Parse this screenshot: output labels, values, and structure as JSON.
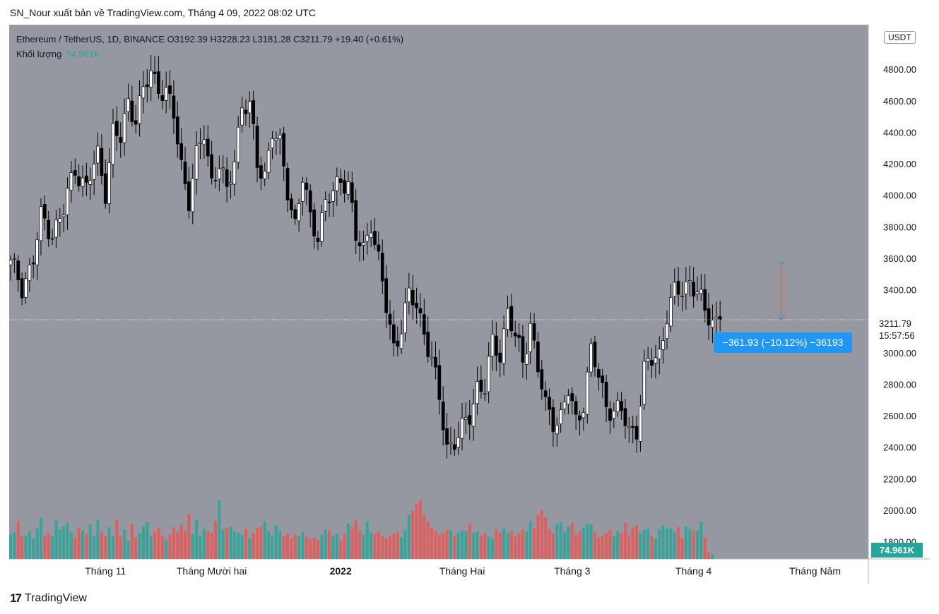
{
  "header": {
    "publish_line": "SN_Nour xuất bản về TradingView.com, Tháng 4 09, 2022 08:02 UTC"
  },
  "legend": {
    "symbol_line": "Ethereum / TetherUS, 1D, BINANCE  O3192.39  H3228.23  L3181.28  C3211.79  +19.40 (+0.61%)",
    "volume_label": "Khối lượng",
    "volume_value": "74.961K"
  },
  "price_scale": {
    "currency": "USDT",
    "last_price": "3211.79",
    "countdown": "15:57:56",
    "volume_tag": "74.961K"
  },
  "measure": {
    "label": "−361.93 (−10.12%) −36193"
  },
  "footer": {
    "brand": "TradingView",
    "logo_glyph": "17"
  },
  "colors": {
    "background": "#9598a1",
    "up": "#ffffff",
    "down": "#000000",
    "vol_up": "#26a69a",
    "vol_down": "#ef5350",
    "measure": "#2196f3"
  },
  "chart_data": {
    "type": "candlestick",
    "y_ticks": [
      "4800.00",
      "4600.00",
      "4400.00",
      "4200.00",
      "4000.00",
      "3800.00",
      "3600.00",
      "3400.00",
      "3000.00",
      "2800.00",
      "2600.00",
      "2400.00",
      "2200.00",
      "2000.00",
      "1800.00"
    ],
    "x_ticks": [
      {
        "label": "Tháng 11",
        "bold": false
      },
      {
        "label": "Tháng Mười hai",
        "bold": false
      },
      {
        "label": "2022",
        "bold": true
      },
      {
        "label": "Tháng Hai",
        "bold": false
      },
      {
        "label": "Tháng 3",
        "bold": false
      },
      {
        "label": "Tháng 4",
        "bold": false
      },
      {
        "label": "Tháng Năm",
        "bold": false
      }
    ],
    "close_anchors": [
      [
        0,
        3560
      ],
      [
        3,
        3420
      ],
      [
        6,
        3600
      ],
      [
        8,
        3850
      ],
      [
        11,
        3770
      ],
      [
        14,
        3900
      ],
      [
        17,
        4180
      ],
      [
        20,
        4050
      ],
      [
        23,
        4250
      ],
      [
        25,
        4040
      ],
      [
        27,
        4400
      ],
      [
        29,
        4350
      ],
      [
        31,
        4600
      ],
      [
        33,
        4500
      ],
      [
        35,
        4650
      ],
      [
        37,
        4780
      ],
      [
        39,
        4700
      ],
      [
        41,
        4650
      ],
      [
        43,
        4500
      ],
      [
        45,
        4200
      ],
      [
        47,
        3980
      ],
      [
        49,
        4230
      ],
      [
        51,
        4400
      ],
      [
        53,
        4100
      ],
      [
        55,
        4200
      ],
      [
        57,
        4000
      ],
      [
        59,
        4250
      ],
      [
        61,
        4580
      ],
      [
        63,
        4550
      ],
      [
        65,
        4200
      ],
      [
        67,
        4150
      ],
      [
        69,
        4400
      ],
      [
        71,
        4300
      ],
      [
        73,
        4050
      ],
      [
        75,
        3820
      ],
      [
        77,
        4100
      ],
      [
        79,
        3850
      ],
      [
        81,
        3770
      ],
      [
        83,
        3950
      ],
      [
        85,
        4000
      ],
      [
        87,
        4120
      ],
      [
        89,
        4080
      ],
      [
        91,
        3720
      ],
      [
        93,
        3650
      ],
      [
        95,
        3850
      ],
      [
        97,
        3580
      ],
      [
        99,
        3280
      ],
      [
        101,
        3040
      ],
      [
        103,
        3180
      ],
      [
        105,
        3350
      ],
      [
        107,
        3300
      ],
      [
        109,
        3150
      ],
      [
        111,
        2950
      ],
      [
        113,
        2700
      ],
      [
        115,
        2410
      ],
      [
        117,
        2450
      ],
      [
        119,
        2500
      ],
      [
        121,
        2600
      ],
      [
        123,
        2800
      ],
      [
        125,
        2780
      ],
      [
        127,
        3050
      ],
      [
        129,
        3000
      ],
      [
        131,
        3280
      ],
      [
        133,
        3080
      ],
      [
        135,
        2950
      ],
      [
        137,
        3200
      ],
      [
        139,
        2900
      ],
      [
        141,
        2650
      ],
      [
        143,
        2580
      ],
      [
        145,
        2600
      ],
      [
        147,
        2750
      ],
      [
        149,
        2560
      ],
      [
        151,
        2700
      ],
      [
        153,
        3010
      ],
      [
        155,
        2840
      ],
      [
        157,
        2680
      ],
      [
        159,
        2640
      ],
      [
        161,
        2620
      ],
      [
        163,
        2500
      ],
      [
        165,
        2530
      ],
      [
        167,
        2880
      ],
      [
        169,
        2950
      ],
      [
        171,
        3000
      ],
      [
        173,
        3250
      ],
      [
        175,
        3370
      ],
      [
        177,
        3400
      ],
      [
        179,
        3470
      ],
      [
        181,
        3380
      ],
      [
        183,
        3250
      ],
      [
        185,
        3220
      ],
      [
        186,
        3211.79
      ]
    ],
    "volume": [
      2020,
      2050,
      2180,
      2000,
      2010,
      2060,
      1980,
      2090,
      2220,
      2010,
      2040,
      2000,
      2190,
      2080,
      2120,
      2160,
      2050,
      1990,
      2100,
      2070,
      2030,
      2140,
      2010,
      2190,
      2060,
      2000,
      2110,
      2010,
      2200,
      2010,
      2080,
      1950,
      2150,
      1990,
      2040,
      2120,
      2170,
      2010,
      2060,
      2100,
      2010,
      1960,
      2020,
      2110,
      2050,
      2140,
      2060,
      2260,
      2030,
      2190,
      2010,
      2090,
      2060,
      2040,
      2180,
      2420,
      2080,
      2100,
      2120,
      2060,
      2040,
      2020,
      2090,
      1980,
      2040,
      2100,
      2120,
      2180,
      2060,
      2010,
      2130,
      2060,
      2010,
      2040,
      1980,
      2020,
      2000,
      2050,
      2000,
      1970,
      1990,
      1960,
      2020,
      2080,
      2070,
      2010,
      2030,
      1950,
      2040,
      2150,
      2110,
      2190,
      2060,
      2020,
      2180,
      2050,
      2030,
      2060,
      2000,
      1980,
      2010,
      2040,
      2050,
      1990,
      2080,
      2250,
      2300,
      2380,
      2420,
      2250,
      2180,
      2100,
      2060,
      2020,
      2040,
      2080,
      2070,
      2010,
      2040,
      2070,
      2060,
      2150,
      2040,
      2060,
      2010,
      2040,
      2000,
      1980,
      2080,
      2050,
      2100,
      2040,
      2060,
      2000,
      2040,
      2080,
      2060,
      2180,
      2100,
      2250,
      2310,
      2220,
      2080,
      2040,
      2150,
      2170,
      2050,
      2120,
      2160,
      2020,
      2060,
      2100,
      2150,
      2140,
      2060,
      1990,
      2010,
      2040,
      2080,
      2000,
      2070,
      2040,
      2160,
      2020,
      2100,
      2130,
      2040,
      2080,
      2090,
      2010,
      1980,
      2080,
      2130,
      2090,
      2100,
      2050,
      2110,
      1980,
      2120,
      2090,
      2070,
      2070,
      2170,
      1990,
      1820,
      1790
    ],
    "volume_ylim": [
      1740,
      4200
    ],
    "price_ylim": [
      1800,
      5000
    ],
    "measure_from": 3573.72,
    "measure_to": 3211.79
  }
}
